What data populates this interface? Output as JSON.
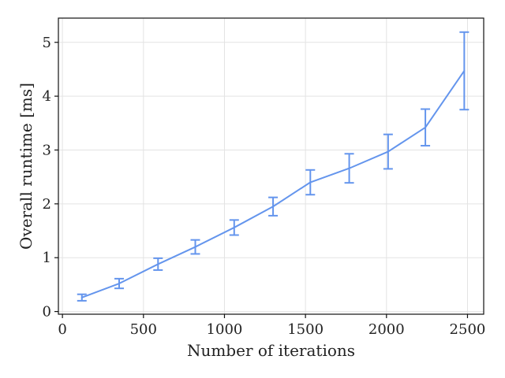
{
  "chart_data": {
    "type": "line",
    "xlabel": "Number of iterations",
    "ylabel": "Overall runtime [ms]",
    "xlim": [
      -25,
      2600
    ],
    "ylim": [
      -0.05,
      5.45
    ],
    "x_ticks": [
      0,
      500,
      1000,
      1500,
      2000,
      2500
    ],
    "y_ticks": [
      0,
      1,
      2,
      3,
      4,
      5
    ],
    "grid": true,
    "legend": "none",
    "series": [
      {
        "color": "#6495ed",
        "x": [
          120,
          350,
          590,
          820,
          1060,
          1300,
          1530,
          1770,
          2010,
          2240,
          2480
        ],
        "y": [
          0.26,
          0.52,
          0.88,
          1.2,
          1.56,
          1.95,
          2.4,
          2.66,
          2.97,
          3.42,
          4.47
        ],
        "err": [
          0.06,
          0.09,
          0.11,
          0.13,
          0.14,
          0.17,
          0.23,
          0.27,
          0.32,
          0.34,
          0.72
        ]
      }
    ]
  }
}
